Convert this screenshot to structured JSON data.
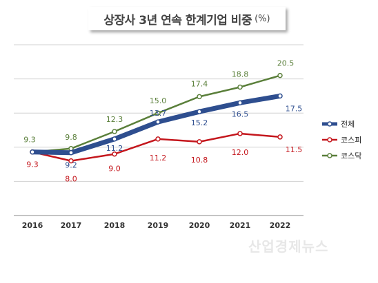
{
  "header": {
    "title": "상장사 3년 연속 한계기업 비중",
    "unit": "(%)"
  },
  "watermark": "산업경제뉴스",
  "chart_data": {
    "type": "line",
    "title": "상장사 3년 연속 한계기업 비중",
    "ylabel": "",
    "xlabel": "",
    "categories": [
      "2016",
      "2017",
      "2018",
      "2019",
      "2020",
      "2021",
      "2022"
    ],
    "ylim": [
      0,
      25
    ],
    "grid": true,
    "legend_position": "right",
    "series": [
      {
        "name": "전체",
        "color": "#2e4e8f",
        "values": [
          9.3,
          9.2,
          11.2,
          13.7,
          15.2,
          16.5,
          17.5
        ],
        "labels": [
          "",
          "9.2",
          "11.2",
          "13.7",
          "15.2",
          "16.5",
          "17.5"
        ]
      },
      {
        "name": "코스피",
        "color": "#c4161c",
        "values": [
          9.3,
          8.0,
          9.0,
          11.2,
          10.8,
          12.0,
          11.5
        ],
        "labels": [
          "9.3",
          "8.0",
          "9.0",
          "11.2",
          "10.8",
          "12.0",
          "11.5"
        ]
      },
      {
        "name": "코스닥",
        "color": "#5a7f3a",
        "values": [
          9.3,
          9.8,
          12.3,
          15.0,
          17.4,
          18.8,
          20.5
        ],
        "labels": [
          "9.3",
          "9.8",
          "12.3",
          "15.0",
          "17.4",
          "18.8",
          "20.5"
        ]
      }
    ]
  }
}
